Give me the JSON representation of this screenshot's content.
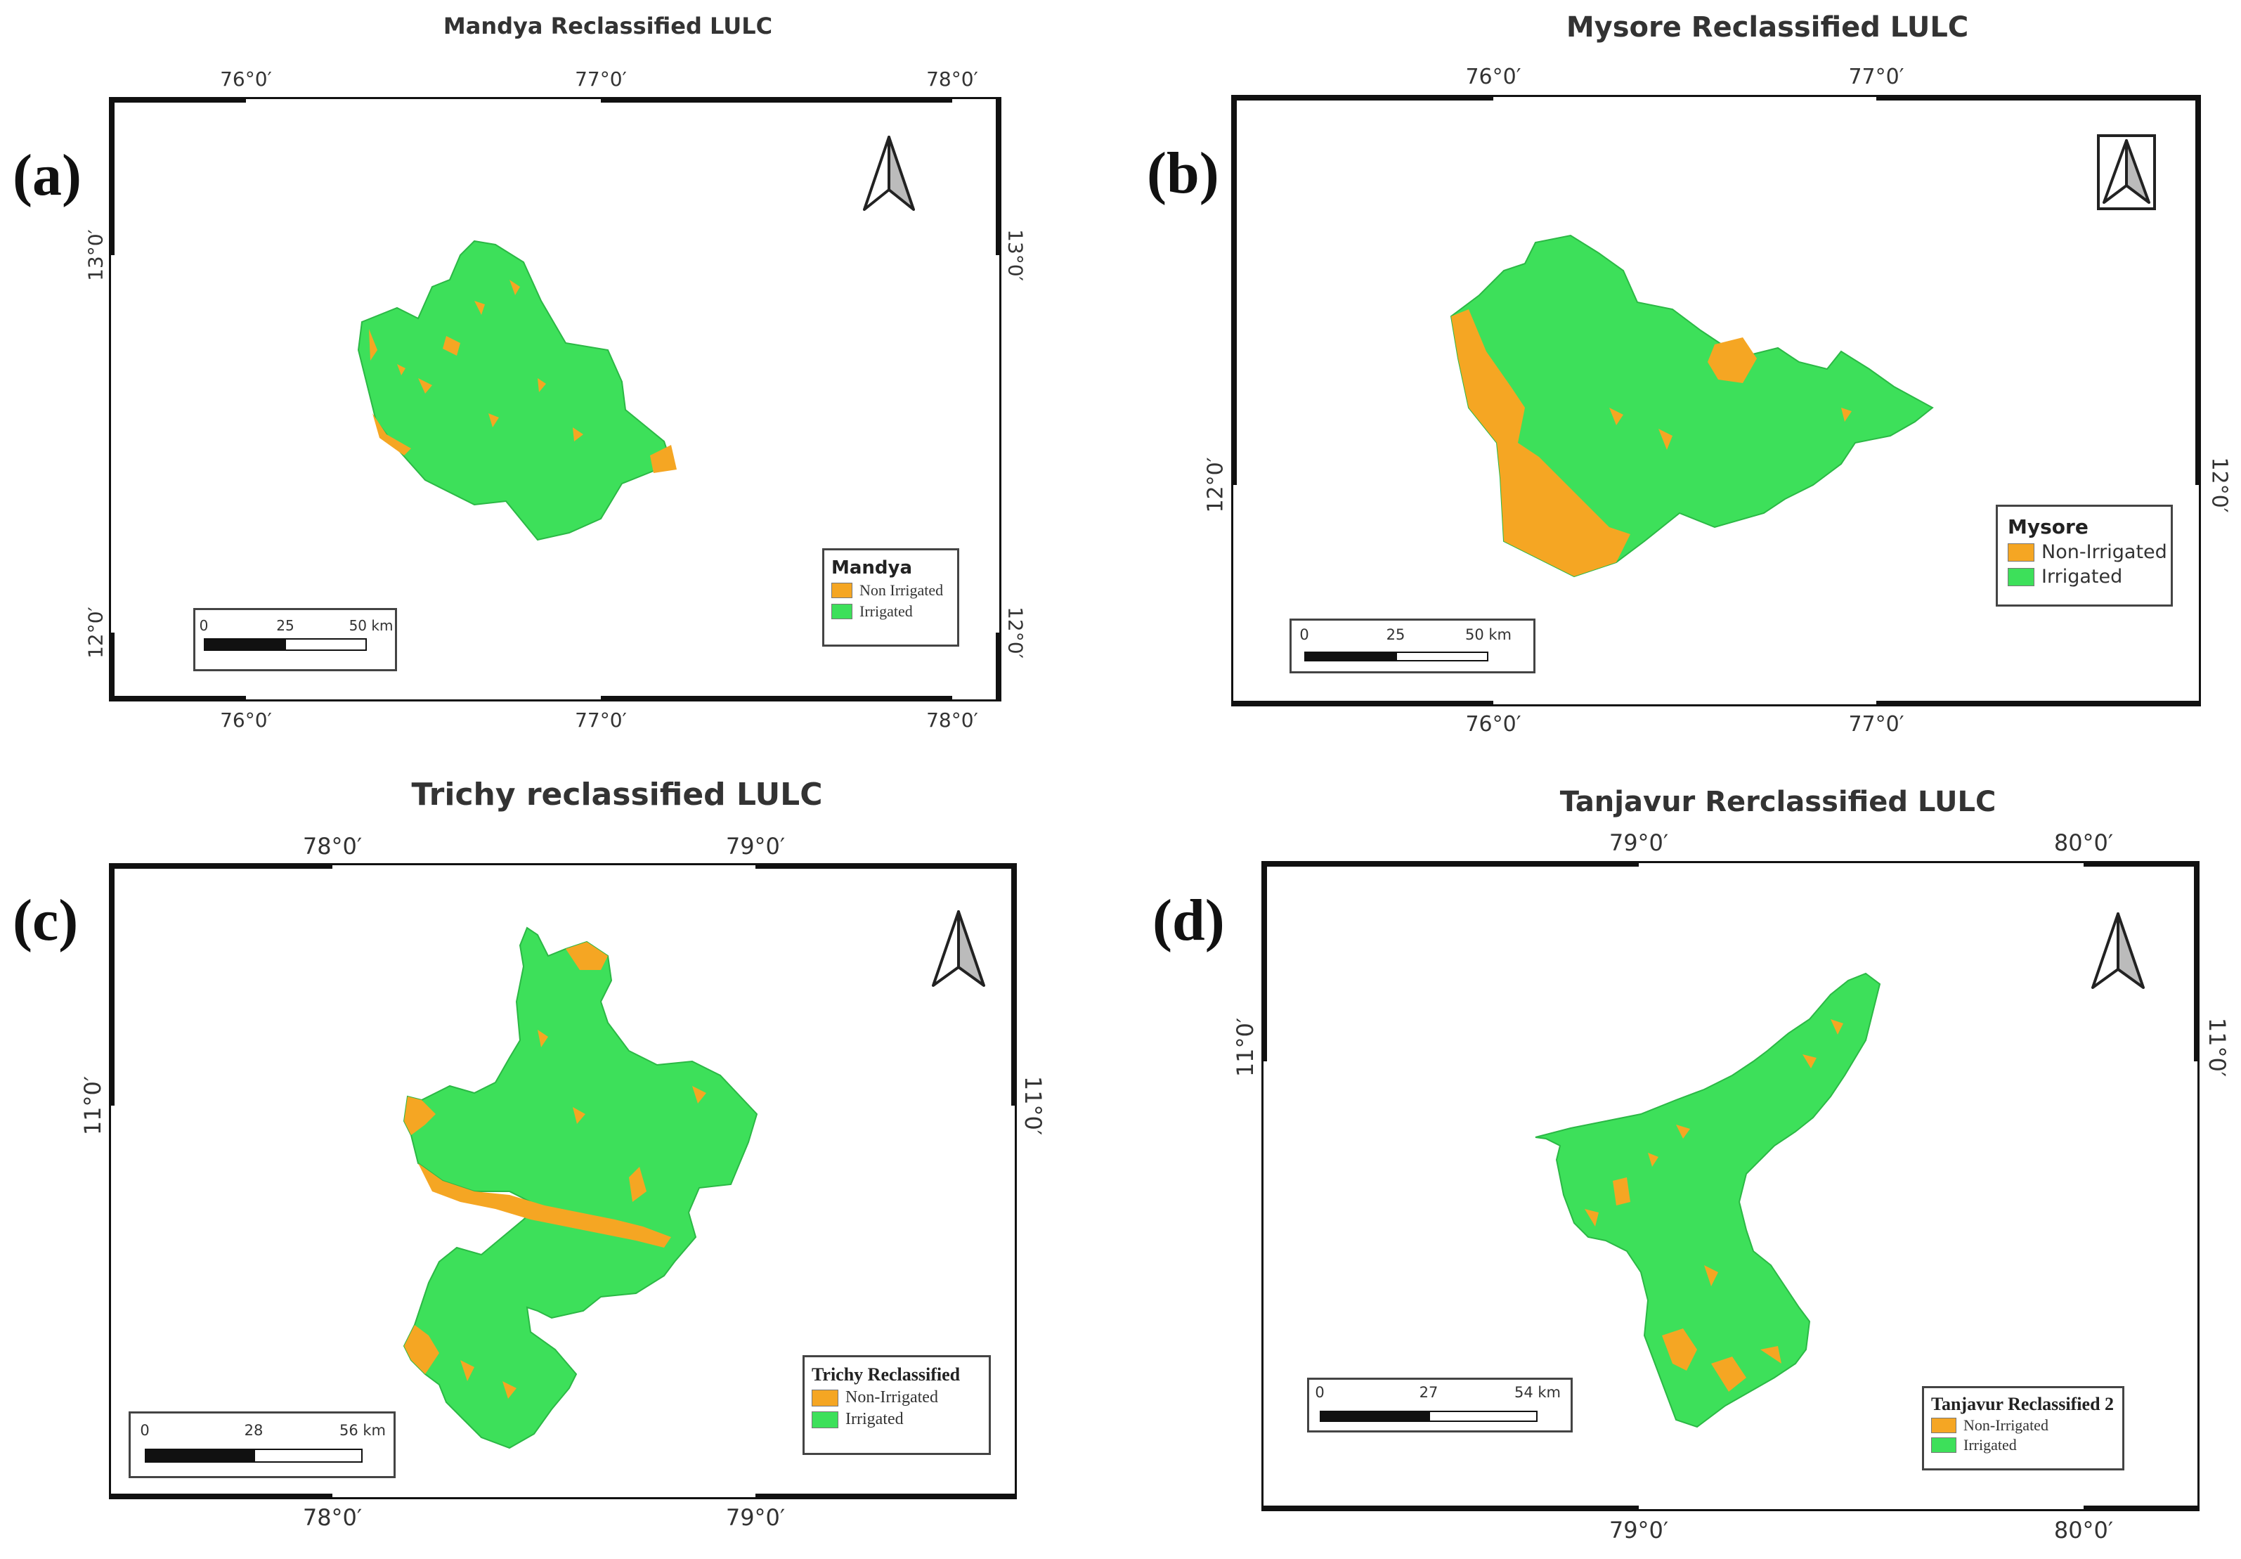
{
  "colors": {
    "non_irrigated": "#F5A623",
    "irrigated": "#3DE05A",
    "frame": "#111111"
  },
  "panels": {
    "a": {
      "label": "(a)",
      "title": "Mandya Reclassified LULC",
      "top_ticks": [
        "76°0′",
        "77°0′",
        "78°0′"
      ],
      "bottom_ticks": [
        "76°0′",
        "77°0′",
        "78°0′"
      ],
      "left_ticks": [
        "13°0′",
        "12°0′"
      ],
      "right_ticks": [
        "13°0′",
        "12°0′"
      ],
      "north_arrow": "north-arrow-icon",
      "legend": {
        "title": "Mandya",
        "items": [
          "Non Irrigated",
          "Irrigated"
        ]
      },
      "scalebar": {
        "labels": [
          "0",
          "25",
          "50 km"
        ]
      }
    },
    "b": {
      "label": "(b)",
      "title": "Mysore Reclassified LULC",
      "top_ticks": [
        "76°0′",
        "77°0′"
      ],
      "bottom_ticks": [
        "76°0′",
        "77°0′"
      ],
      "left_ticks": [
        "12°0′"
      ],
      "right_ticks": [
        "12°0′"
      ],
      "north_arrow": "north-arrow-icon",
      "legend": {
        "title": "Mysore",
        "items": [
          "Non-Irrigated",
          "Irrigated"
        ]
      },
      "scalebar": {
        "labels": [
          "0",
          "25",
          "50 km"
        ]
      }
    },
    "c": {
      "label": "(c)",
      "title": "Trichy reclassified LULC",
      "top_ticks": [
        "78°0′",
        "79°0′"
      ],
      "bottom_ticks": [
        "78°0′",
        "79°0′"
      ],
      "left_ticks": [
        "11°0′"
      ],
      "right_ticks": [
        "11°0′"
      ],
      "north_arrow": "north-arrow-icon",
      "legend": {
        "title": "Trichy Reclassified",
        "items": [
          "Non-Irrigated",
          "Irrigated"
        ]
      },
      "scalebar": {
        "labels": [
          "0",
          "28",
          "56 km"
        ]
      }
    },
    "d": {
      "label": "(d)",
      "title": "Tanjavur Rerclassified LULC",
      "top_ticks": [
        "79°0′",
        "80°0′"
      ],
      "bottom_ticks": [
        "79°0′",
        "80°0′"
      ],
      "left_ticks": [
        "11°0′"
      ],
      "right_ticks": [
        "11°0′"
      ],
      "north_arrow": "north-arrow-icon",
      "legend": {
        "title": "Tanjavur Reclassified 2",
        "items": [
          "Non-Irrigated",
          "Irrigated"
        ]
      },
      "scalebar": {
        "labels": [
          "0",
          "27",
          "54 km"
        ]
      }
    }
  }
}
